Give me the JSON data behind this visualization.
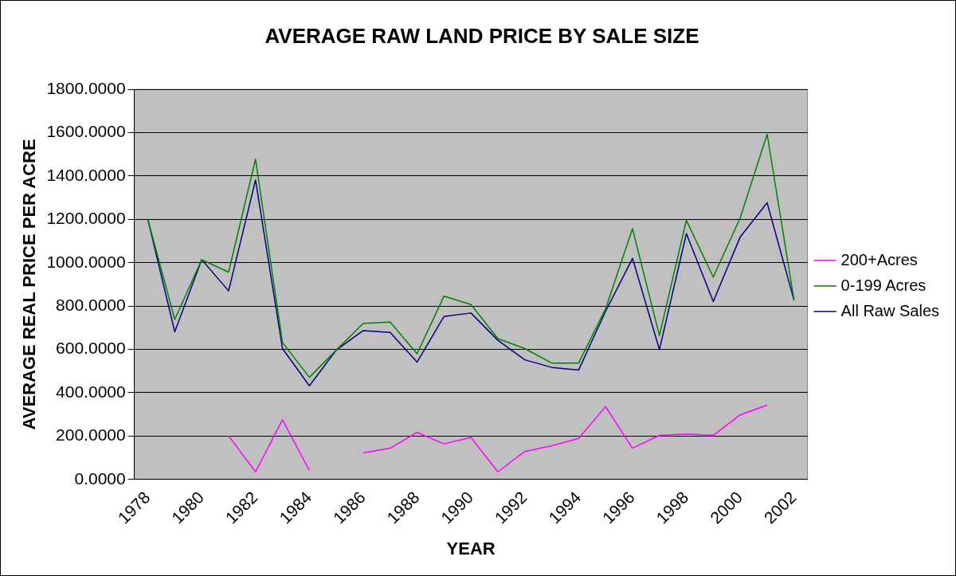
{
  "chart_data": {
    "type": "line",
    "title": "AVERAGE RAW LAND PRICE BY SALE SIZE",
    "xlabel": "YEAR",
    "ylabel": "AVERAGE REAL PRICE PER ACRE",
    "categories": [
      "1978",
      null,
      "1980",
      null,
      "1982",
      null,
      "1984",
      null,
      "1986",
      null,
      "1988",
      null,
      "1990",
      null,
      "1992",
      null,
      "1994",
      null,
      "1996",
      null,
      "1998",
      null,
      "2000",
      null,
      "2002"
    ],
    "series": [
      {
        "name": "200+Acres",
        "color": "#ff00ff",
        "values": [
          null,
          null,
          null,
          201,
          35,
          275,
          41,
          null,
          122,
          144,
          217,
          164,
          194,
          35,
          129,
          155,
          189,
          336,
          144,
          203,
          210,
          203,
          298,
          343,
          null
        ]
      },
      {
        "name": "0-199 Acres",
        "color": "#008000",
        "values": [
          1200,
          738,
          1014,
          957,
          1478,
          632,
          471,
          597,
          720,
          726,
          580,
          846,
          807,
          650,
          604,
          537,
          537,
          787,
          1157,
          664,
          1196,
          934,
          1207,
          1593,
          827
        ]
      },
      {
        "name": "All Raw Sales",
        "color": "#000080",
        "values": [
          1200,
          681,
          1014,
          870,
          1382,
          604,
          432,
          597,
          687,
          678,
          541,
          752,
          768,
          642,
          552,
          517,
          505,
          776,
          1020,
          599,
          1134,
          821,
          1119,
          1277,
          827
        ]
      }
    ],
    "ylim": [
      0,
      1800
    ],
    "yticks": [
      {
        "value": 0,
        "label": "0.0000"
      },
      {
        "value": 200,
        "label": "200.0000"
      },
      {
        "value": 400,
        "label": "400.0000"
      },
      {
        "value": 600,
        "label": "600.0000"
      },
      {
        "value": 800,
        "label": "800.0000"
      },
      {
        "value": 1000,
        "label": "1000.0000"
      },
      {
        "value": 1200,
        "label": "1200.0000"
      },
      {
        "value": 1400,
        "label": "1400.0000"
      },
      {
        "value": 1600,
        "label": "1600.0000"
      },
      {
        "value": 1800,
        "label": "1800.0000"
      }
    ],
    "grid": "y",
    "legend": "right",
    "marker": "none",
    "line_style": "solid"
  }
}
